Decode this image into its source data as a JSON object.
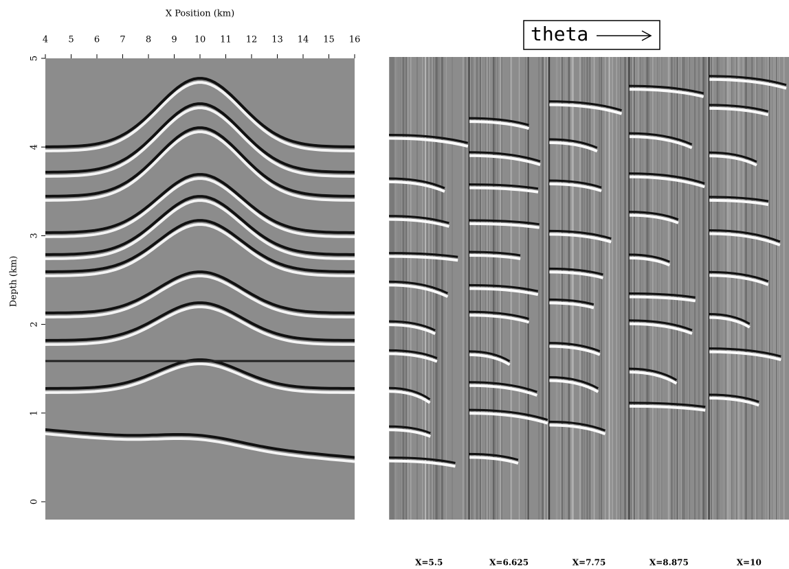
{
  "left_panel": {
    "x_label": "X Position (km)",
    "y_label": "Depth (km)",
    "xlim": [
      4,
      16
    ],
    "xticks": [
      4,
      5,
      6,
      7,
      8,
      9,
      10,
      11,
      12,
      13,
      14,
      15,
      16
    ],
    "ylim": [
      0,
      5
    ],
    "yticks": [
      0,
      1,
      2,
      3,
      4,
      5
    ]
  },
  "right_panel": {
    "title": "theta",
    "panel_labels": [
      "X=5.5",
      "X=6.625",
      "X=7.75",
      "X=8.875",
      "X=10"
    ]
  }
}
